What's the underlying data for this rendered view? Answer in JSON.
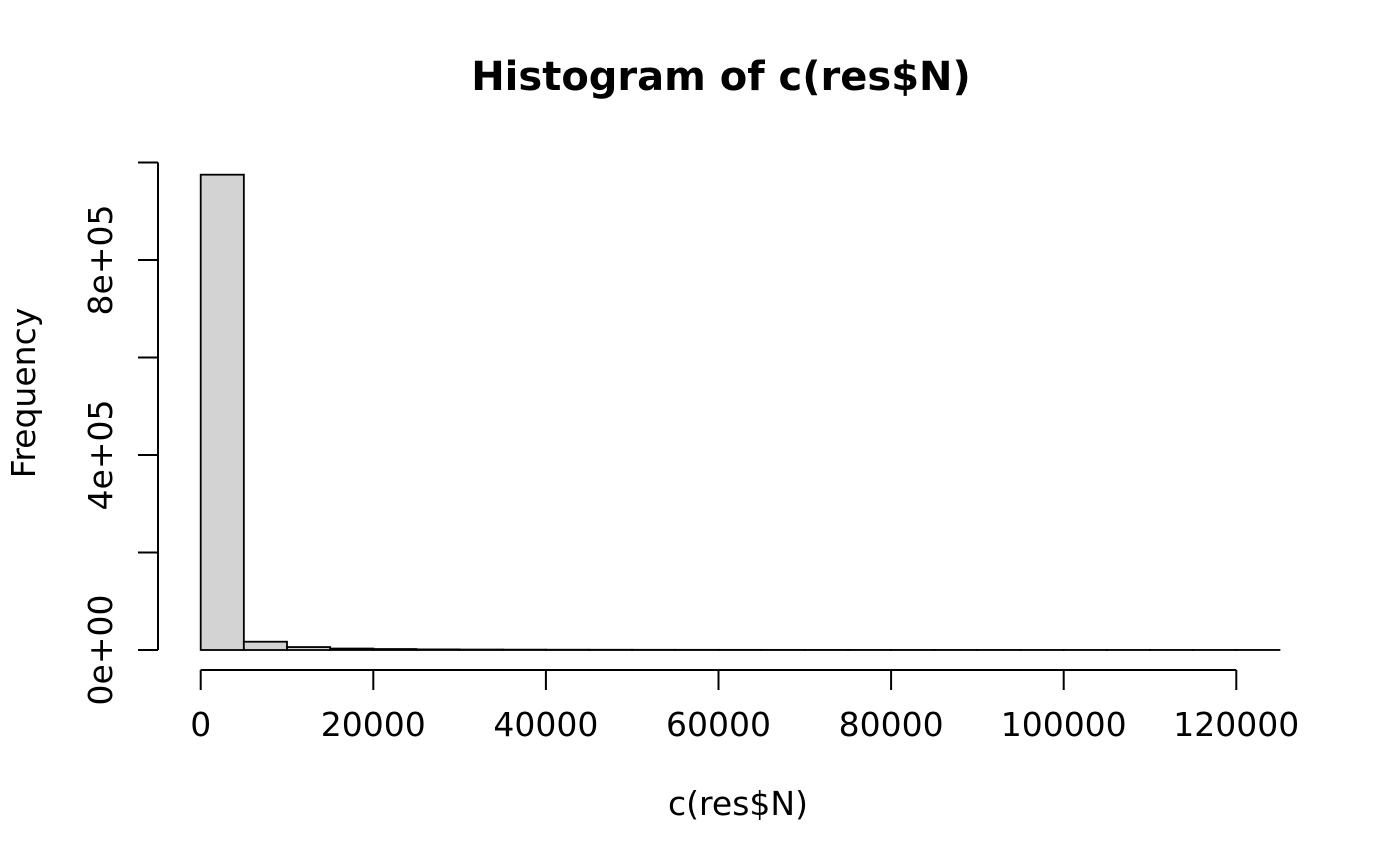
{
  "figure": {
    "title": "Histogram of c(res$N)",
    "x_axis_label": "c(res$N)",
    "y_axis_label": "Frequency"
  },
  "colors": {
    "background": "#ffffff",
    "bar_fill": "#d3d3d3",
    "bar_stroke": "#000000",
    "axis_color": "#000000",
    "text_color": "#000000"
  },
  "chart_data": {
    "type": "bar",
    "chart_style": "histogram",
    "title": "Histogram of c(res$N)",
    "xlabel": "c(res$N)",
    "ylabel": "Frequency",
    "grid": false,
    "legend": false,
    "bin_start": 0,
    "bin_width": 5000,
    "bin_count": 25,
    "xlim": [
      0,
      125000
    ],
    "ylim": [
      0,
      1000000
    ],
    "x_ticks": [
      0,
      20000,
      40000,
      60000,
      80000,
      100000,
      120000
    ],
    "x_tick_labels": [
      "0",
      "20000",
      "40000",
      "60000",
      "80000",
      "100000",
      "120000"
    ],
    "y_ticks": [
      0,
      200000,
      400000,
      600000,
      800000,
      1000000
    ],
    "y_tick_labels": [
      "0e+00",
      "",
      "4e+05",
      "",
      "8e+05",
      ""
    ],
    "values": [
      975000,
      17000,
      6000,
      3000,
      2000,
      1200,
      900,
      700,
      550,
      450,
      380,
      320,
      270,
      230,
      200,
      175,
      150,
      130,
      115,
      100,
      90,
      80,
      70,
      60,
      55
    ]
  }
}
